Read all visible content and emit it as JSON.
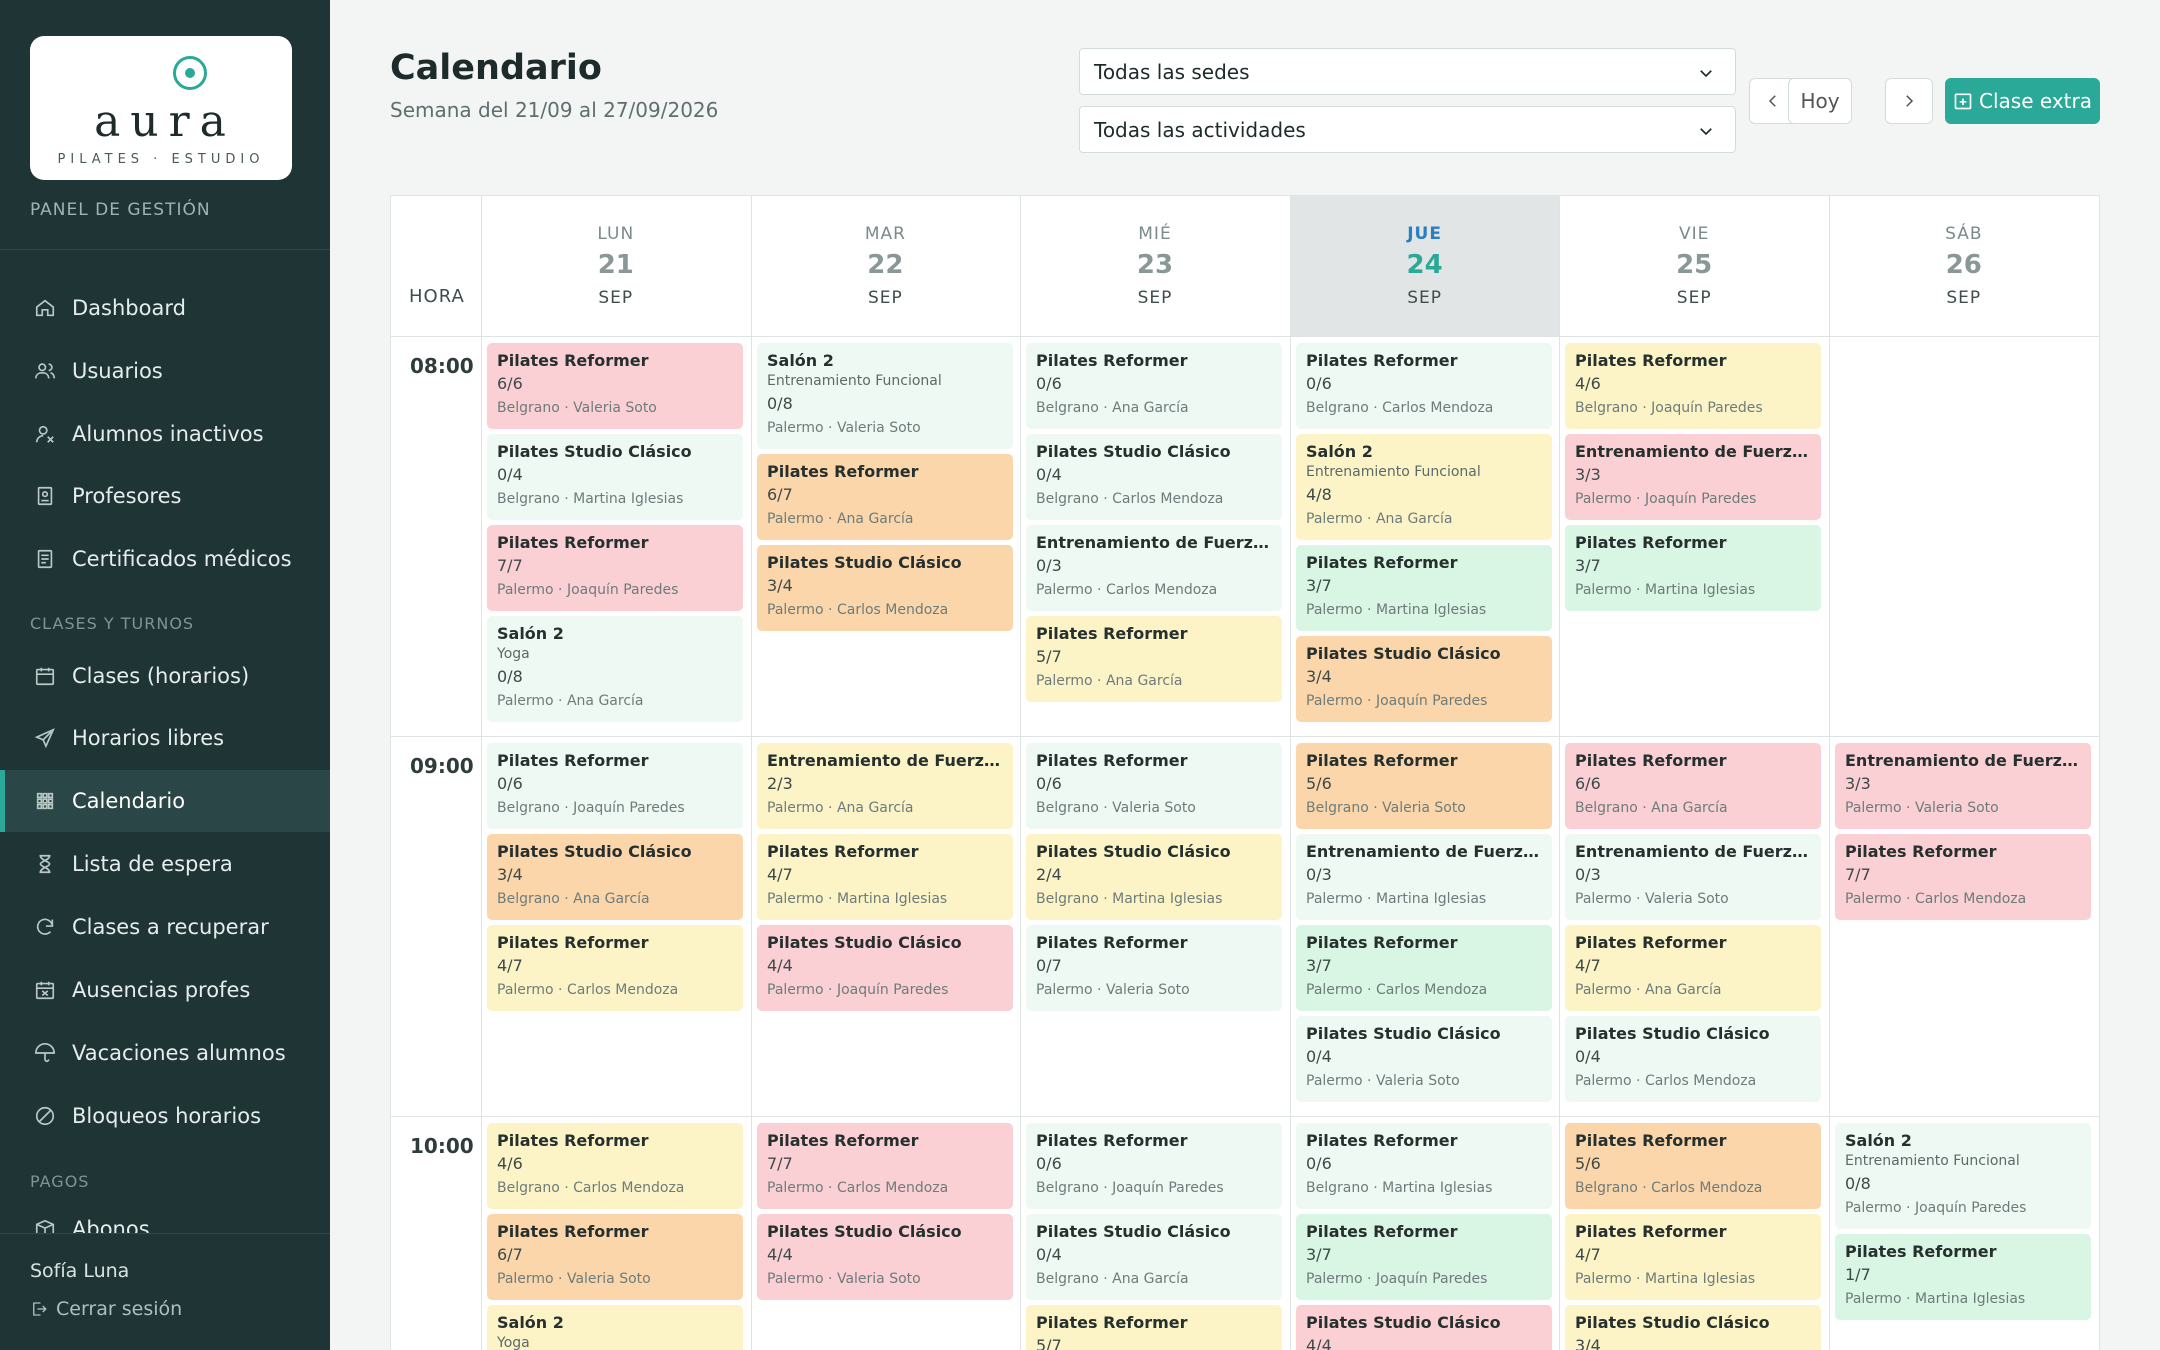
{
  "sidebar": {
    "logo_word": "aura",
    "logo_sub": "PILATES · ESTUDIO",
    "panel_label": "PANEL DE GESTIÓN",
    "items": [
      {
        "label": "Dashboard",
        "icon": "home-icon"
      },
      {
        "label": "Usuarios",
        "icon": "users-icon"
      },
      {
        "label": "Alumnos inactivos",
        "icon": "user-off-icon"
      },
      {
        "label": "Profesores",
        "icon": "id-badge-icon"
      },
      {
        "label": "Certificados médicos",
        "icon": "document-icon"
      },
      {
        "label": "Clases (horarios)",
        "icon": "calendar-icon"
      },
      {
        "label": "Horarios libres",
        "icon": "send-icon"
      },
      {
        "label": "Calendario",
        "icon": "grid-icon",
        "active": true
      },
      {
        "label": "Lista de espera",
        "icon": "hourglass-icon"
      },
      {
        "label": "Clases a recuperar",
        "icon": "refresh-icon"
      },
      {
        "label": "Ausencias profes",
        "icon": "calendar-x-icon"
      },
      {
        "label": "Vacaciones alumnos",
        "icon": "umbrella-icon"
      },
      {
        "label": "Bloqueos horarios",
        "icon": "block-icon"
      },
      {
        "label": "Abonos",
        "icon": "box-icon"
      }
    ],
    "sections": {
      "clases": "CLASES Y TURNOS",
      "pagos": "PAGOS"
    },
    "user_name": "Sofía Luna",
    "logout": "Cerrar sesión"
  },
  "header": {
    "title": "Calendario",
    "subtitle": "Semana del 21/09 al 27/09/2026",
    "select_sede": "Todas las sedes",
    "select_actividad": "Todas las actividades",
    "today_label": "Hoy",
    "extra_label": "Clase extra"
  },
  "calendar": {
    "hora_label": "HORA",
    "days": [
      {
        "dow": "LUN",
        "num": "21",
        "mon": "SEP"
      },
      {
        "dow": "MAR",
        "num": "22",
        "mon": "SEP"
      },
      {
        "dow": "MIÉ",
        "num": "23",
        "mon": "SEP"
      },
      {
        "dow": "JUE",
        "num": "24",
        "mon": "SEP",
        "today": true
      },
      {
        "dow": "VIE",
        "num": "25",
        "mon": "SEP"
      },
      {
        "dow": "SÁB",
        "num": "26",
        "mon": "SEP"
      }
    ],
    "slots": [
      {
        "time": "08:00",
        "days": [
          [
            {
              "title": "Pilates Reformer",
              "count": "6/6",
              "meta": "Belgrano · Valeria Soto",
              "color": "red"
            },
            {
              "title": "Pilates Studio Clásico",
              "count": "0/4",
              "meta": "Belgrano · Martina Iglesias",
              "color": "mint"
            },
            {
              "title": "Pilates Reformer",
              "count": "7/7",
              "meta": "Palermo · Joaquín Paredes",
              "color": "red"
            },
            {
              "title": "Salón 2",
              "sub": "Yoga",
              "count": "0/8",
              "meta": "Palermo · Ana García",
              "color": "mint"
            }
          ],
          [
            {
              "title": "Salón 2",
              "sub": "Entrenamiento Funcional",
              "count": "0/8",
              "meta": "Palermo · Valeria Soto",
              "color": "mint"
            },
            {
              "title": "Pilates Reformer",
              "count": "6/7",
              "meta": "Palermo · Ana García",
              "color": "orange"
            },
            {
              "title": "Pilates Studio Clásico",
              "count": "3/4",
              "meta": "Palermo · Carlos Mendoza",
              "color": "orange"
            }
          ],
          [
            {
              "title": "Pilates Reformer",
              "count": "0/6",
              "meta": "Belgrano · Ana García",
              "color": "mint"
            },
            {
              "title": "Pilates Studio Clásico",
              "count": "0/4",
              "meta": "Belgrano · Carlos Mendoza",
              "color": "mint"
            },
            {
              "title": "Entrenamiento de Fuerza Personalizado",
              "count": "0/3",
              "meta": "Palermo · Carlos Mendoza",
              "color": "mint"
            },
            {
              "title": "Pilates Reformer",
              "count": "5/7",
              "meta": "Palermo · Ana García",
              "color": "yellow"
            }
          ],
          [
            {
              "title": "Pilates Reformer",
              "count": "0/6",
              "meta": "Belgrano · Carlos Mendoza",
              "color": "mint"
            },
            {
              "title": "Salón 2",
              "sub": "Entrenamiento Funcional",
              "count": "4/8",
              "meta": "Palermo · Ana García",
              "color": "yellow"
            },
            {
              "title": "Pilates Reformer",
              "count": "3/7",
              "meta": "Palermo · Martina Iglesias",
              "color": "green"
            },
            {
              "title": "Pilates Studio Clásico",
              "count": "3/4",
              "meta": "Palermo · Joaquín Paredes",
              "color": "orange"
            }
          ],
          [
            {
              "title": "Pilates Reformer",
              "count": "4/6",
              "meta": "Belgrano · Joaquín Paredes",
              "color": "yellow"
            },
            {
              "title": "Entrenamiento de Fuerza Personalizado",
              "count": "3/3",
              "meta": "Palermo · Joaquín Paredes",
              "color": "red"
            },
            {
              "title": "Pilates Reformer",
              "count": "3/7",
              "meta": "Palermo · Martina Iglesias",
              "color": "green"
            }
          ],
          []
        ]
      },
      {
        "time": "09:00",
        "days": [
          [
            {
              "title": "Pilates Reformer",
              "count": "0/6",
              "meta": "Belgrano · Joaquín Paredes",
              "color": "mint"
            },
            {
              "title": "Pilates Studio Clásico",
              "count": "3/4",
              "meta": "Belgrano · Ana García",
              "color": "orange"
            },
            {
              "title": "Pilates Reformer",
              "count": "4/7",
              "meta": "Palermo · Carlos Mendoza",
              "color": "yellow"
            }
          ],
          [
            {
              "title": "Entrenamiento de Fuerza Personalizado",
              "count": "2/3",
              "meta": "Palermo · Ana García",
              "color": "yellow"
            },
            {
              "title": "Pilates Reformer",
              "count": "4/7",
              "meta": "Palermo · Martina Iglesias",
              "color": "yellow"
            },
            {
              "title": "Pilates Studio Clásico",
              "count": "4/4",
              "meta": "Palermo · Joaquín Paredes",
              "color": "red"
            }
          ],
          [
            {
              "title": "Pilates Reformer",
              "count": "0/6",
              "meta": "Belgrano · Valeria Soto",
              "color": "mint"
            },
            {
              "title": "Pilates Studio Clásico",
              "count": "2/4",
              "meta": "Belgrano · Martina Iglesias",
              "color": "yellow"
            },
            {
              "title": "Pilates Reformer",
              "count": "0/7",
              "meta": "Palermo · Valeria Soto",
              "color": "mint"
            }
          ],
          [
            {
              "title": "Pilates Reformer",
              "count": "5/6",
              "meta": "Belgrano · Valeria Soto",
              "color": "orange"
            },
            {
              "title": "Entrenamiento de Fuerza Personalizado",
              "count": "0/3",
              "meta": "Palermo · Martina Iglesias",
              "color": "mint"
            },
            {
              "title": "Pilates Reformer",
              "count": "3/7",
              "meta": "Palermo · Carlos Mendoza",
              "color": "green"
            },
            {
              "title": "Pilates Studio Clásico",
              "count": "0/4",
              "meta": "Palermo · Valeria Soto",
              "color": "mint"
            }
          ],
          [
            {
              "title": "Pilates Reformer",
              "count": "6/6",
              "meta": "Belgrano · Ana García",
              "color": "red"
            },
            {
              "title": "Entrenamiento de Fuerza Personalizado",
              "count": "0/3",
              "meta": "Palermo · Valeria Soto",
              "color": "mint"
            },
            {
              "title": "Pilates Reformer",
              "count": "4/7",
              "meta": "Palermo · Ana García",
              "color": "yellow"
            },
            {
              "title": "Pilates Studio Clásico",
              "count": "0/4",
              "meta": "Palermo · Carlos Mendoza",
              "color": "mint"
            }
          ],
          [
            {
              "title": "Entrenamiento de Fuerza Personalizado",
              "count": "3/3",
              "meta": "Palermo · Valeria Soto",
              "color": "red"
            },
            {
              "title": "Pilates Reformer",
              "count": "7/7",
              "meta": "Palermo · Carlos Mendoza",
              "color": "red"
            }
          ]
        ]
      },
      {
        "time": "10:00",
        "days": [
          [
            {
              "title": "Pilates Reformer",
              "count": "4/6",
              "meta": "Belgrano · Carlos Mendoza",
              "color": "yellow"
            },
            {
              "title": "Pilates Reformer",
              "count": "6/7",
              "meta": "Palermo · Valeria Soto",
              "color": "orange"
            },
            {
              "title": "Salón 2",
              "sub": "Yoga",
              "count": "",
              "meta": "",
              "color": "yellow"
            }
          ],
          [
            {
              "title": "Pilates Reformer",
              "count": "7/7",
              "meta": "Palermo · Carlos Mendoza",
              "color": "red"
            },
            {
              "title": "Pilates Studio Clásico",
              "count": "4/4",
              "meta": "Palermo · Valeria Soto",
              "color": "red"
            }
          ],
          [
            {
              "title": "Pilates Reformer",
              "count": "0/6",
              "meta": "Belgrano · Joaquín Paredes",
              "color": "mint"
            },
            {
              "title": "Pilates Studio Clásico",
              "count": "0/4",
              "meta": "Belgrano · Ana García",
              "color": "mint"
            },
            {
              "title": "Pilates Reformer",
              "count": "5/7",
              "meta": "",
              "color": "yellow"
            }
          ],
          [
            {
              "title": "Pilates Reformer",
              "count": "0/6",
              "meta": "Belgrano · Martina Iglesias",
              "color": "mint"
            },
            {
              "title": "Pilates Reformer",
              "count": "3/7",
              "meta": "Palermo · Joaquín Paredes",
              "color": "green"
            },
            {
              "title": "Pilates Studio Clásico",
              "count": "4/4",
              "meta": "",
              "color": "red"
            }
          ],
          [
            {
              "title": "Pilates Reformer",
              "count": "5/6",
              "meta": "Belgrano · Carlos Mendoza",
              "color": "orange"
            },
            {
              "title": "Pilates Reformer",
              "count": "4/7",
              "meta": "Palermo · Martina Iglesias",
              "color": "yellow"
            },
            {
              "title": "Pilates Studio Clásico",
              "count": "3/4",
              "meta": "",
              "color": "yellow"
            }
          ],
          [
            {
              "title": "Salón 2",
              "sub": "Entrenamiento Funcional",
              "count": "0/8",
              "meta": "Palermo · Joaquín Paredes",
              "color": "mint"
            },
            {
              "title": "Pilates Reformer",
              "count": "1/7",
              "meta": "Palermo · Martina Iglesias",
              "color": "green"
            }
          ]
        ]
      }
    ]
  }
}
